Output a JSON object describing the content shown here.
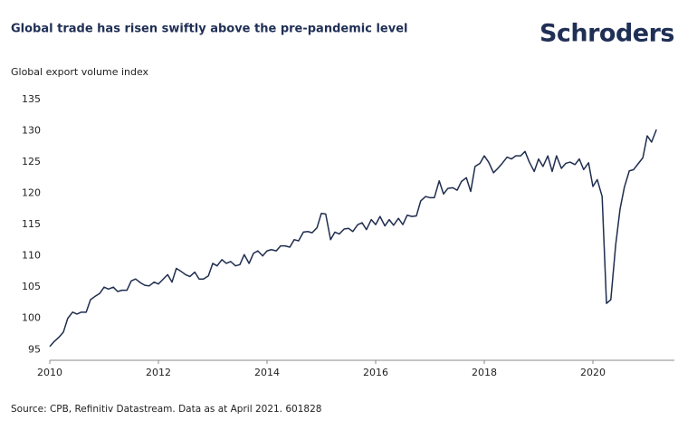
{
  "chart_data": {
    "type": "line",
    "title": "Global trade has risen swiftly above the pre-pandemic level",
    "logo": "Schroders",
    "y_label": "Global export volume index",
    "source": "Source: CPB, Refinitiv Datastream. Data as at April 2021. 601828",
    "x": [
      2010,
      2010.08,
      2010.17,
      2010.25,
      2010.33,
      2010.42,
      2010.5,
      2010.58,
      2010.67,
      2010.75,
      2010.83,
      2010.92,
      2011,
      2011.08,
      2011.17,
      2011.25,
      2011.33,
      2011.42,
      2011.5,
      2011.58,
      2011.67,
      2011.75,
      2011.83,
      2011.92,
      2012,
      2012.08,
      2012.17,
      2012.25,
      2012.33,
      2012.42,
      2012.5,
      2012.58,
      2012.67,
      2012.75,
      2012.83,
      2012.92,
      2013,
      2013.08,
      2013.17,
      2013.25,
      2013.33,
      2013.42,
      2013.5,
      2013.58,
      2013.67,
      2013.75,
      2013.83,
      2013.92,
      2014,
      2014.08,
      2014.17,
      2014.25,
      2014.33,
      2014.42,
      2014.5,
      2014.58,
      2014.67,
      2014.75,
      2014.83,
      2014.92,
      2015,
      2015.08,
      2015.17,
      2015.25,
      2015.33,
      2015.42,
      2015.5,
      2015.58,
      2015.67,
      2015.75,
      2015.83,
      2015.92,
      2016,
      2016.08,
      2016.17,
      2016.25,
      2016.33,
      2016.42,
      2016.5,
      2016.58,
      2016.67,
      2016.75,
      2016.83,
      2016.92,
      2017,
      2017.08,
      2017.17,
      2017.25,
      2017.33,
      2017.42,
      2017.5,
      2017.58,
      2017.67,
      2017.75,
      2017.83,
      2017.92,
      2018,
      2018.08,
      2018.17,
      2018.25,
      2018.33,
      2018.42,
      2018.5,
      2018.58,
      2018.67,
      2018.75,
      2018.83,
      2018.92,
      2019,
      2019.08,
      2019.17,
      2019.25,
      2019.33,
      2019.42,
      2019.5,
      2019.58,
      2019.67,
      2019.75,
      2019.83,
      2019.92,
      2020,
      2020.08,
      2020.17,
      2020.25,
      2020.33,
      2020.42,
      2020.5,
      2020.58,
      2020.67,
      2020.75,
      2020.83,
      2020.92,
      2021,
      2021.08,
      2021.17
    ],
    "series": [
      {
        "color": "#1f2d4e",
        "values": [
          95.5,
          96.3,
          97,
          97.8,
          100,
          101,
          100.7,
          101,
          101,
          103,
          103.5,
          104,
          105,
          104.7,
          105,
          104.3,
          104.5,
          104.5,
          106,
          106.3,
          105.7,
          105.3,
          105.2,
          105.8,
          105.5,
          106.2,
          107,
          105.8,
          108,
          107.5,
          107,
          106.7,
          107.4,
          106.3,
          106.3,
          106.8,
          108.8,
          108.4,
          109.4,
          108.8,
          109.1,
          108.4,
          108.6,
          110.2,
          108.8,
          110.4,
          110.8,
          110,
          110.8,
          111,
          110.8,
          111.6,
          111.6,
          111.4,
          112.6,
          112.4,
          113.8,
          113.9,
          113.7,
          114.5,
          116.8,
          116.7,
          112.6,
          113.8,
          113.5,
          114.3,
          114.4,
          113.9,
          115,
          115.3,
          114.2,
          115.8,
          115,
          116.3,
          114.8,
          115.8,
          114.9,
          116,
          115,
          116.5,
          116.3,
          116.4,
          118.8,
          119.5,
          119.3,
          119.3,
          122,
          119.9,
          120.8,
          120.9,
          120.5,
          121.9,
          122.5,
          120.3,
          124.3,
          124.8,
          126,
          125,
          123.3,
          124,
          124.8,
          125.8,
          125.5,
          126,
          126,
          126.7,
          125,
          123.5,
          125.5,
          124.3,
          126,
          123.5,
          126,
          124,
          124.8,
          125,
          124.6,
          125.5,
          123.8,
          124.9,
          121.1,
          122.2,
          119.5,
          102.4,
          103,
          111.8,
          117.5,
          121,
          123.6,
          123.8,
          124.7,
          125.7,
          129.2,
          128.2,
          130.2
        ]
      }
    ],
    "xlim": [
      2010,
      2021.5
    ],
    "xticks": [
      2010,
      2012,
      2014,
      2016,
      2018,
      2020
    ],
    "ylim": [
      93.3,
      135
    ],
    "yticks": [
      95,
      100,
      105,
      110,
      115,
      120,
      125,
      130,
      135
    ],
    "grid": false
  }
}
